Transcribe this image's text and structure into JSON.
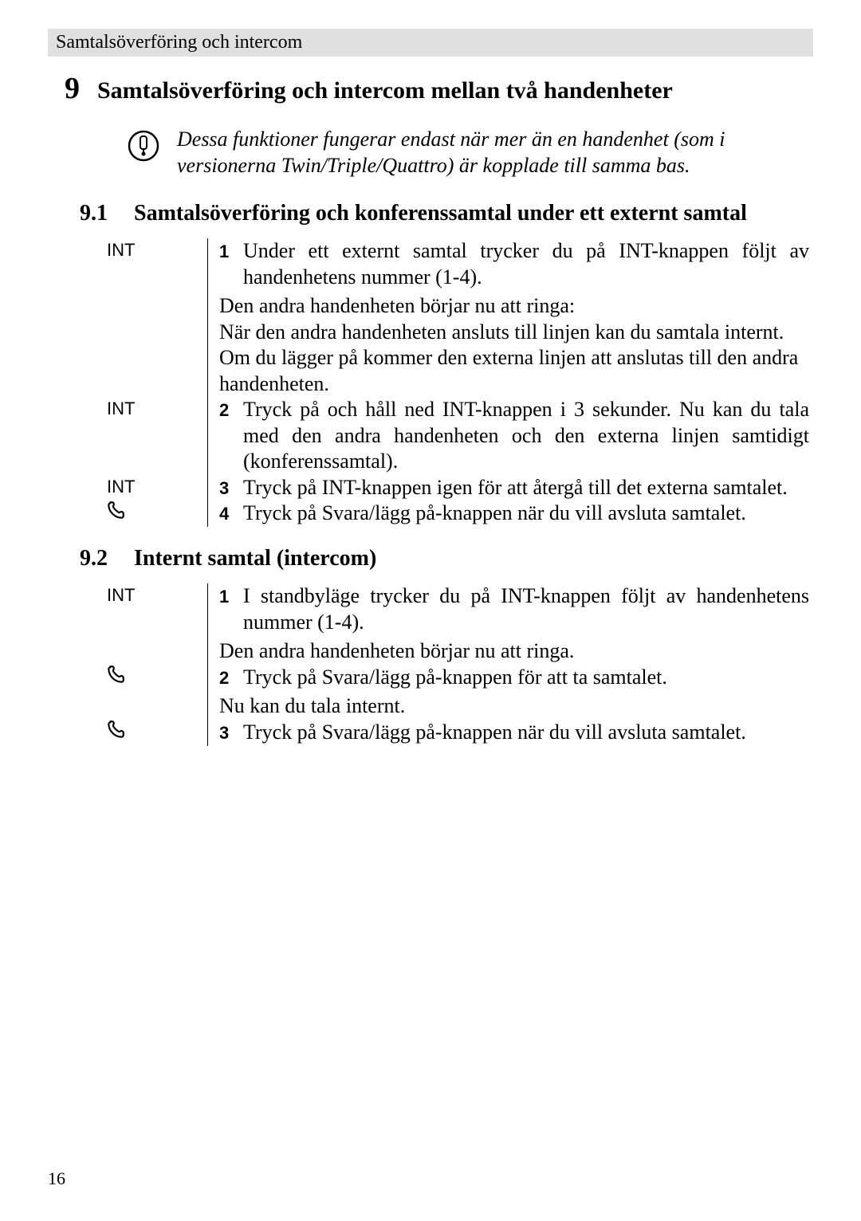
{
  "header": {
    "running_title": "Samtalsöverföring och intercom"
  },
  "chapter": {
    "number": "9",
    "title": "Samtalsöverföring och intercom mellan två handenheter"
  },
  "note": {
    "icon_name": "info-icon",
    "text": "Dessa funktioner fungerar endast när mer än en handenhet (som i versionerna Twin/Triple/Quattro) är kopplade till samma bas."
  },
  "section_91": {
    "number": "9.1",
    "title": "Samtalsöverföring och konferenssamtal under ett externt samtal",
    "steps": [
      {
        "key_label": "INT",
        "key_type": "text",
        "num": "1",
        "text": "Under ett externt samtal trycker du på INT-knappen följt av handenhetens nummer (1-4).",
        "extra": "Den andra handenheten börjar nu att ringa:\nNär den andra handenheten ansluts till linjen kan du samtala internt. Om du lägger på kommer den externa linjen att anslutas till den andra handenheten."
      },
      {
        "key_label": "INT",
        "key_type": "text",
        "num": "2",
        "text": "Tryck på och håll ned INT-knappen i 3 sekunder. Nu kan du tala med den andra handenheten och den externa linjen samtidigt (konferenssamtal)."
      },
      {
        "key_label": "INT",
        "key_type": "text",
        "num": "3",
        "text": "Tryck på INT-knappen igen för att återgå till det externa samtalet."
      },
      {
        "key_label": "phone",
        "key_type": "glyph",
        "num": "4",
        "text": "Tryck på Svara/lägg på-knappen när du vill avsluta samtalet."
      }
    ]
  },
  "section_92": {
    "number": "9.2",
    "title": "Internt samtal (intercom)",
    "steps": [
      {
        "key_label": "INT",
        "key_type": "text",
        "num": "1",
        "text": "I standbyläge trycker du på INT-knappen följt av handenhetens nummer (1-4).",
        "extra": "Den andra handenheten börjar nu att ringa."
      },
      {
        "key_label": "phone",
        "key_type": "glyph",
        "num": "2",
        "text": "Tryck på Svara/lägg på-knappen för att ta samtalet.",
        "extra": "Nu kan du tala internt."
      },
      {
        "key_label": "phone",
        "key_type": "glyph",
        "num": "3",
        "text": "Tryck på Svara/lägg på-knappen när du vill avsluta samtalet."
      }
    ]
  },
  "page_number": "16",
  "colors": {
    "header_bg": "#e0e0e0",
    "text": "#000000",
    "page_bg": "#ffffff"
  }
}
